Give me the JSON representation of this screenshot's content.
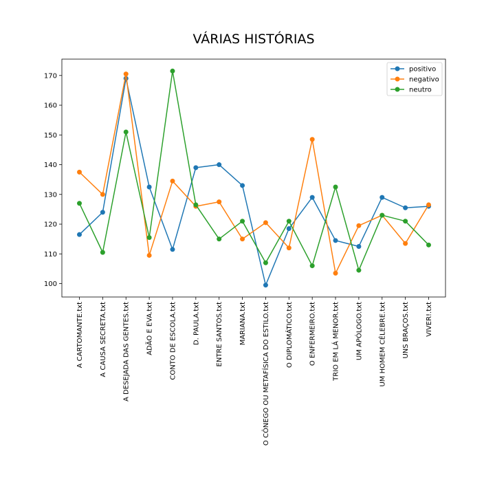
{
  "chart_data": {
    "type": "line",
    "title": "VÁRIAS HISTÓRIAS",
    "xlabel": "",
    "ylabel": "",
    "ylim": [
      95.5,
      175.5
    ],
    "yticks": [
      100,
      110,
      120,
      130,
      140,
      150,
      160,
      170
    ],
    "grid": false,
    "legend_position": "top-right",
    "categories": [
      "A CARTOMANTE.txt",
      "A CAUSA SECRETA.txt",
      "A DESEJADA DAS GENTES.txt",
      "ADÃO E EVA.txt",
      "CONTO DE ESCOLA.txt",
      "D. PAULA.txt",
      "ENTRE SANTOS.txt",
      "MARIANA.txt",
      "O CÔNEGO OU METAFÍSICA DO ESTILO.txt",
      "O DIPLOMÁTICO.txt",
      "O ENFERMEIRO.txt",
      "TRIO EM LÁ MENOR.txt",
      "UM APÓLOGO.txt",
      "UM HOMEM CÉLEBRE.txt",
      "UNS BRAÇOS.txt",
      "VIVER!.txt"
    ],
    "series": [
      {
        "name": "positivo",
        "color": "#1f77b4",
        "values": [
          116.5,
          124.0,
          169.0,
          132.5,
          111.5,
          139.0,
          140.0,
          133.0,
          99.5,
          118.5,
          129.0,
          114.5,
          112.5,
          129.0,
          125.5,
          126.0
        ]
      },
      {
        "name": "negativo",
        "color": "#ff7f0e",
        "values": [
          137.5,
          130.0,
          170.5,
          109.5,
          134.5,
          126.0,
          127.5,
          115.0,
          120.5,
          112.0,
          148.5,
          103.5,
          119.5,
          123.0,
          113.5,
          126.5
        ]
      },
      {
        "name": "neutro",
        "color": "#2ca02c",
        "values": [
          127.0,
          110.5,
          151.0,
          115.5,
          171.5,
          126.5,
          115.0,
          121.0,
          107.0,
          121.0,
          106.0,
          132.5,
          104.5,
          123.0,
          121.0,
          113.0
        ]
      }
    ]
  }
}
